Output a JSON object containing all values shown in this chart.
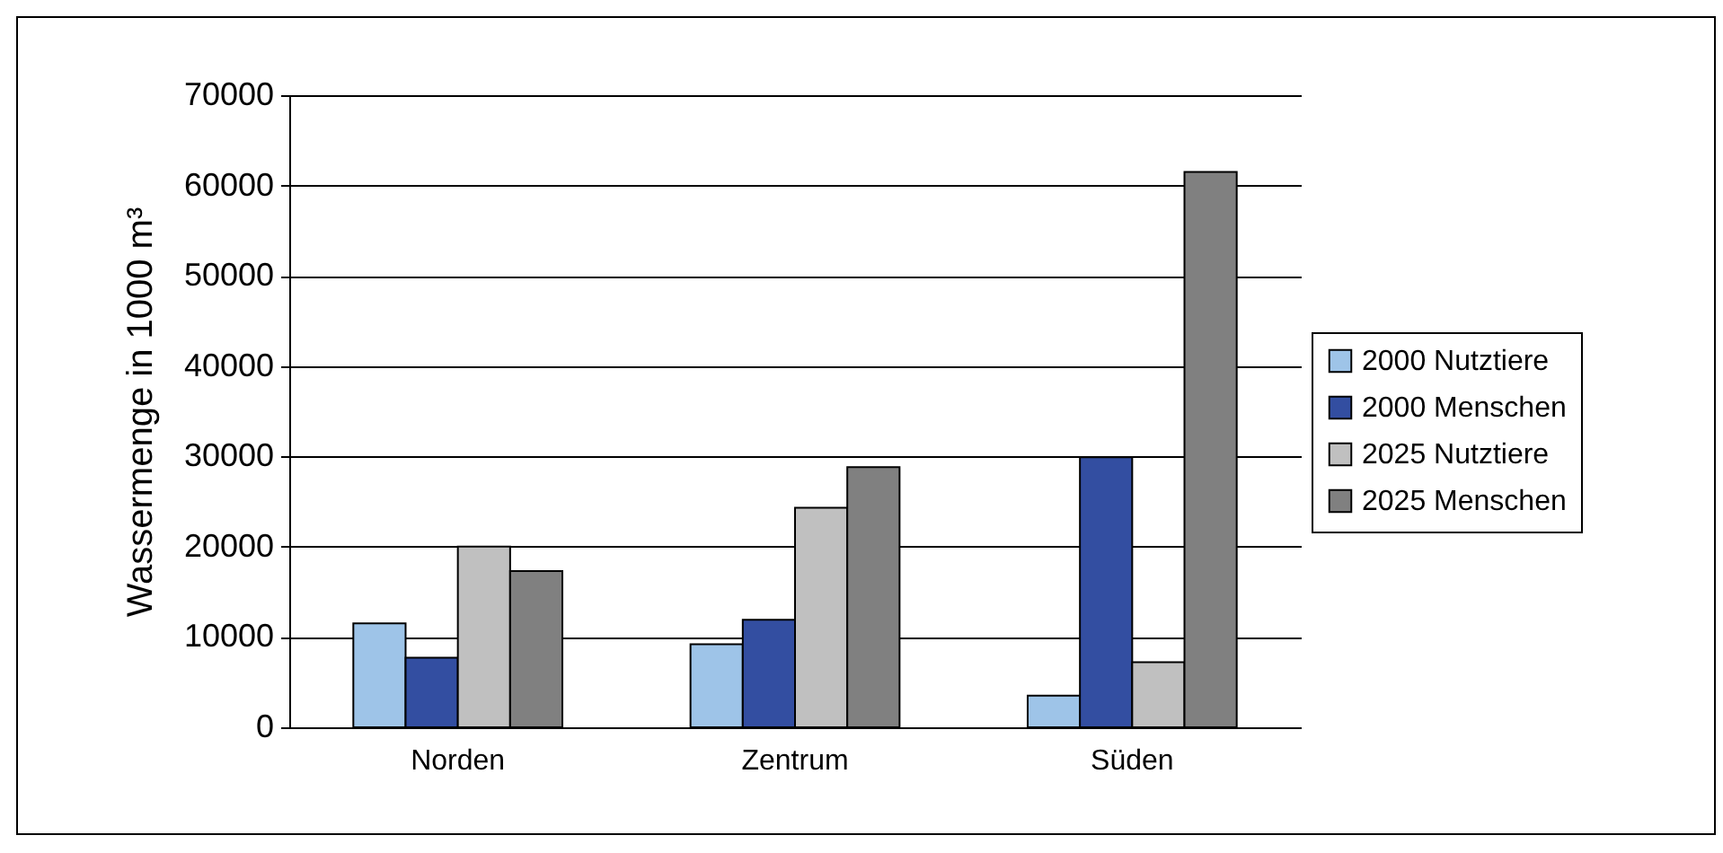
{
  "chart_data": {
    "type": "bar",
    "ylabel": "Wassermenge in 1000 m³",
    "categories": [
      "Norden",
      "Zentrum",
      "Süden"
    ],
    "series": [
      {
        "name": "2000 Nutztiere",
        "color": "#9ec4e8",
        "values": [
          11500,
          9200,
          3500
        ]
      },
      {
        "name": "2000 Menschen",
        "color": "#334ea1",
        "values": [
          7700,
          11900,
          29900
        ]
      },
      {
        "name": "2025 Nutztiere",
        "color": "#c0c0c0",
        "values": [
          20000,
          24300,
          7200
        ]
      },
      {
        "name": "2025 Menschen",
        "color": "#808080",
        "values": [
          17300,
          28800,
          61500
        ]
      }
    ],
    "ylim": [
      0,
      70000
    ],
    "yticks": [
      0,
      10000,
      20000,
      30000,
      40000,
      50000,
      60000,
      70000
    ],
    "grid": "y",
    "legend": "right"
  }
}
